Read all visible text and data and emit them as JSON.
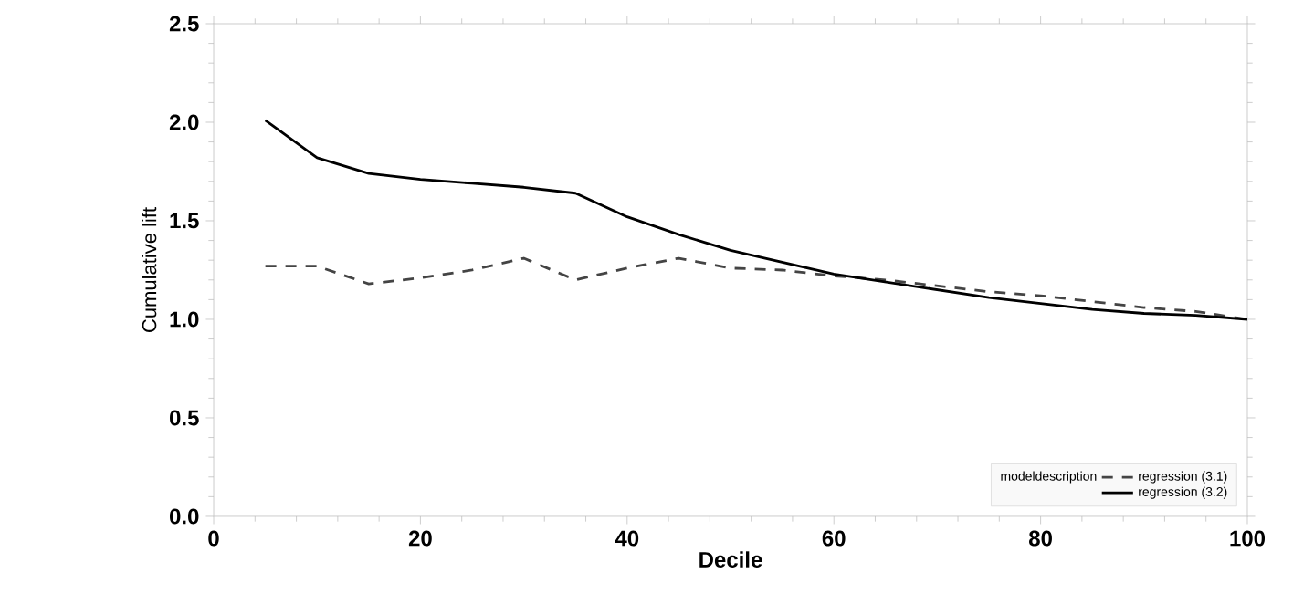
{
  "chart_data": {
    "type": "line",
    "xlabel": "Decile",
    "ylabel": "Cumulative lift",
    "legend_title": "modeldescription",
    "legend": "bottom right",
    "x": [
      5,
      10,
      15,
      20,
      25,
      30,
      35,
      40,
      45,
      50,
      55,
      60,
      65,
      70,
      75,
      80,
      85,
      90,
      95,
      100
    ],
    "series": [
      {
        "name": "regression (3.1)",
        "color": "#444444",
        "line_style": "dashed",
        "values": [
          1.27,
          1.27,
          1.18,
          1.21,
          1.25,
          1.31,
          1.2,
          1.26,
          1.31,
          1.26,
          1.25,
          1.22,
          1.2,
          1.17,
          1.14,
          1.12,
          1.09,
          1.06,
          1.04,
          1.0
        ]
      },
      {
        "name": "regression (3.2)",
        "color": "#000000",
        "line_style": "solid",
        "values": [
          2.01,
          1.82,
          1.74,
          1.71,
          1.69,
          1.67,
          1.64,
          1.52,
          1.43,
          1.35,
          1.29,
          1.23,
          1.19,
          1.15,
          1.11,
          1.08,
          1.05,
          1.03,
          1.02,
          1.0
        ]
      }
    ],
    "xlim": [
      0,
      100
    ],
    "ylim": [
      0,
      2.5
    ],
    "xticks": [
      0,
      20,
      40,
      60,
      80,
      100
    ],
    "yticks": [
      {
        "value": 0,
        "label": "0.0"
      },
      0.5,
      {
        "value": 1,
        "label": "1.0"
      },
      1.5,
      {
        "value": 2,
        "label": "2.0"
      },
      2.5
    ]
  }
}
